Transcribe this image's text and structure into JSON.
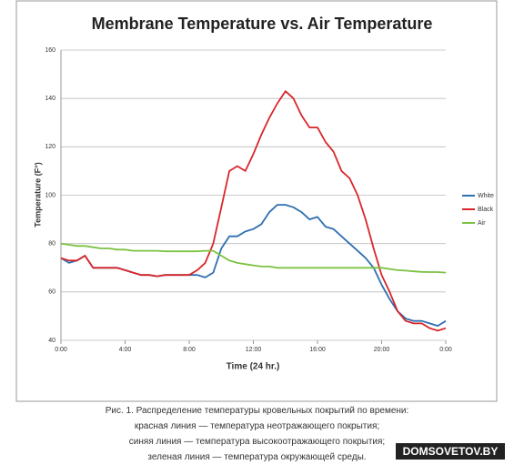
{
  "chart_data": {
    "type": "line",
    "title": "Membrane Temperature vs. Air Temperature",
    "xlabel": "Time (24 hr.)",
    "ylabel": "Temperature (F°)",
    "x": [
      0,
      0.5,
      1,
      1.5,
      2,
      2.5,
      3,
      3.5,
      4,
      4.5,
      5,
      5.5,
      6,
      6.5,
      7,
      7.5,
      8,
      8.5,
      9,
      9.5,
      10,
      10.5,
      11,
      11.5,
      12,
      12.5,
      13,
      13.5,
      14,
      14.5,
      15,
      15.5,
      16,
      16.5,
      17,
      17.5,
      18,
      18.5,
      19,
      19.5,
      20,
      20.5,
      21,
      21.5,
      22,
      22.5,
      23,
      23.5,
      24
    ],
    "series": [
      {
        "name": "White",
        "color": "#2e6fb0",
        "values": [
          74,
          72,
          73,
          75,
          70,
          70,
          70,
          70,
          69,
          68,
          67,
          67,
          66.5,
          67,
          67,
          67,
          67,
          67,
          66,
          68,
          78,
          83,
          83,
          85,
          86,
          88,
          93,
          96,
          96,
          95,
          93,
          90,
          91,
          87,
          86,
          83,
          80,
          77,
          74,
          70,
          63,
          57,
          52,
          49,
          48,
          48,
          47,
          46,
          48
        ]
      },
      {
        "name": "Black",
        "color": "#d8262a",
        "values": [
          74,
          73,
          73,
          75,
          70,
          70,
          70,
          70,
          69,
          68,
          67,
          67,
          66.5,
          67,
          67,
          67,
          67,
          69,
          72,
          80,
          95,
          110,
          112,
          110,
          117,
          125,
          132,
          138,
          143,
          140,
          133,
          128,
          128,
          122,
          118,
          110,
          107,
          100,
          90,
          78,
          67,
          60,
          52,
          48,
          47,
          47,
          45,
          44,
          45
        ]
      },
      {
        "name": "Air",
        "color": "#7cc242",
        "values": [
          80,
          79.5,
          79,
          79,
          78.5,
          78,
          78,
          77.5,
          77.5,
          77,
          77,
          77,
          77,
          76.8,
          76.8,
          76.8,
          76.8,
          76.8,
          77,
          77,
          75,
          73,
          72,
          71.5,
          71,
          70.5,
          70.5,
          70,
          70,
          70,
          70,
          70,
          70,
          70,
          70,
          70,
          70,
          70,
          70,
          70,
          70,
          69.5,
          69,
          68.8,
          68.5,
          68.3,
          68.2,
          68.2,
          68
        ]
      }
    ],
    "xlim": [
      0,
      24
    ],
    "xticks": [
      {
        "value": 0,
        "label": "0:00"
      },
      {
        "value": 4,
        "label": "4:00"
      },
      {
        "value": 8,
        "label": "8:00"
      },
      {
        "value": 12,
        "label": "12:00"
      },
      {
        "value": 16,
        "label": "16:00"
      },
      {
        "value": 20,
        "label": "20:00"
      },
      {
        "value": 24,
        "label": "0:00"
      }
    ],
    "ylim": [
      40,
      160
    ],
    "yticks": [
      40,
      60,
      80,
      100,
      120,
      140,
      160
    ],
    "grid": true,
    "legend": "right"
  },
  "caption": [
    "Рис. 1. Распределение температуры кровельных покрытий по времени:",
    "красная линия — температура неотражающего покрытия;",
    "синяя линия — температура высокоотражающего покрытия;",
    "зеленая линия — температура окружающей среды."
  ],
  "watermark": "DOMSOVETOV.BY"
}
